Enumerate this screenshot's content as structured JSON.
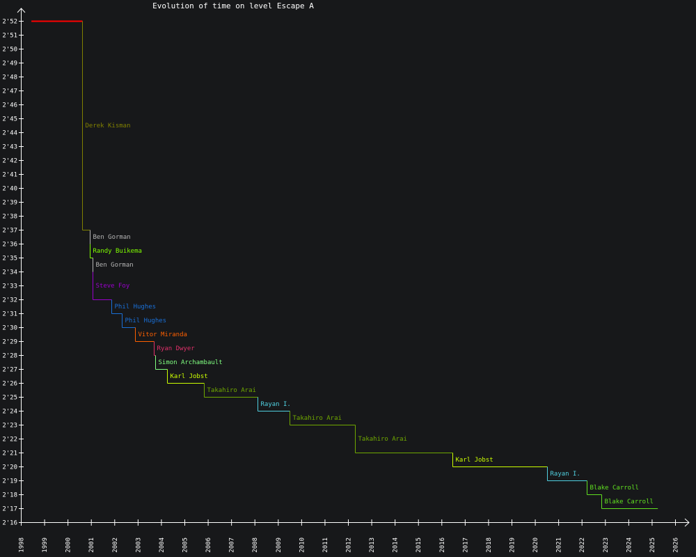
{
  "chart_data": {
    "type": "line",
    "style": "step",
    "title": "Evolution of time on level Escape A",
    "xlabel": "",
    "ylabel": "",
    "xlim": [
      1998,
      2026
    ],
    "ylim_seconds": [
      136,
      172
    ],
    "x_ticks": [
      "1998",
      "1999",
      "2000",
      "2001",
      "2002",
      "2003",
      "2004",
      "2005",
      "2006",
      "2007",
      "2008",
      "2009",
      "2010",
      "2011",
      "2012",
      "2013",
      "2014",
      "2015",
      "2016",
      "2017",
      "2018",
      "2019",
      "2020",
      "2021",
      "2022",
      "2023",
      "2024",
      "2025",
      "2026"
    ],
    "y_ticks": [
      "2'16",
      "2'17",
      "2'18",
      "2'19",
      "2'20",
      "2'21",
      "2'22",
      "2'23",
      "2'24",
      "2'25",
      "2'26",
      "2'27",
      "2'28",
      "2'29",
      "2'30",
      "2'31",
      "2'32",
      "2'33",
      "2'34",
      "2'35",
      "2'36",
      "2'37",
      "2'38",
      "2'39",
      "2'40",
      "2'41",
      "2'42",
      "2'43",
      "2'44",
      "2'45",
      "2'46",
      "2'47",
      "2'48",
      "2'49",
      "2'50",
      "2'51",
      "2'52"
    ],
    "initial": {
      "year": 1998.45,
      "seconds": 172,
      "color": "#ff0000"
    },
    "end_year": 2025.26,
    "records": [
      {
        "player": "Derek Kisman",
        "year": 2000.62,
        "seconds": 157,
        "color": "#808000"
      },
      {
        "player": "Ben Gorman",
        "year": 2000.95,
        "seconds": 156,
        "color": "#b4b4b4"
      },
      {
        "player": "Randy Buikema",
        "year": 2000.95,
        "seconds": 155,
        "color": "#80ff00"
      },
      {
        "player": "Ben Gorman",
        "year": 2001.07,
        "seconds": 154,
        "color": "#b4b4b4"
      },
      {
        "player": "Steve Foy",
        "year": 2001.07,
        "seconds": 152,
        "color": "#9900cc"
      },
      {
        "player": "Phil Hughes",
        "year": 2001.87,
        "seconds": 151,
        "color": "#1a70d8"
      },
      {
        "player": "Phil Hughes",
        "year": 2002.32,
        "seconds": 150,
        "color": "#1a70d8"
      },
      {
        "player": "Vitor Miranda",
        "year": 2002.89,
        "seconds": 149,
        "color": "#ff6000"
      },
      {
        "player": "Ryan Dwyer",
        "year": 2003.69,
        "seconds": 148,
        "color": "#e0306a"
      },
      {
        "player": "Simon Archambault",
        "year": 2003.75,
        "seconds": 147,
        "color": "#80ff80"
      },
      {
        "player": "Karl Jobst",
        "year": 2004.26,
        "seconds": 146,
        "color": "#ccff00"
      },
      {
        "player": "Takahiro Arai",
        "year": 2005.83,
        "seconds": 145,
        "color": "#70a800"
      },
      {
        "player": "Rayan I.",
        "year": 2008.13,
        "seconds": 144,
        "color": "#50d0e0"
      },
      {
        "player": "Takahiro Arai",
        "year": 2009.5,
        "seconds": 143,
        "color": "#70a800"
      },
      {
        "player": "Takahiro Arai",
        "year": 2012.3,
        "seconds": 141,
        "color": "#70a800"
      },
      {
        "player": "Karl Jobst",
        "year": 2016.47,
        "seconds": 140,
        "color": "#ccff00"
      },
      {
        "player": "Rayan I.",
        "year": 2020.52,
        "seconds": 139,
        "color": "#50d0e0"
      },
      {
        "player": "Blake Carroll",
        "year": 2022.22,
        "seconds": 138,
        "color": "#60e020"
      },
      {
        "player": "Blake Carroll",
        "year": 2022.84,
        "seconds": 137,
        "color": "#60e020"
      }
    ],
    "grid": false,
    "legend": "none"
  }
}
